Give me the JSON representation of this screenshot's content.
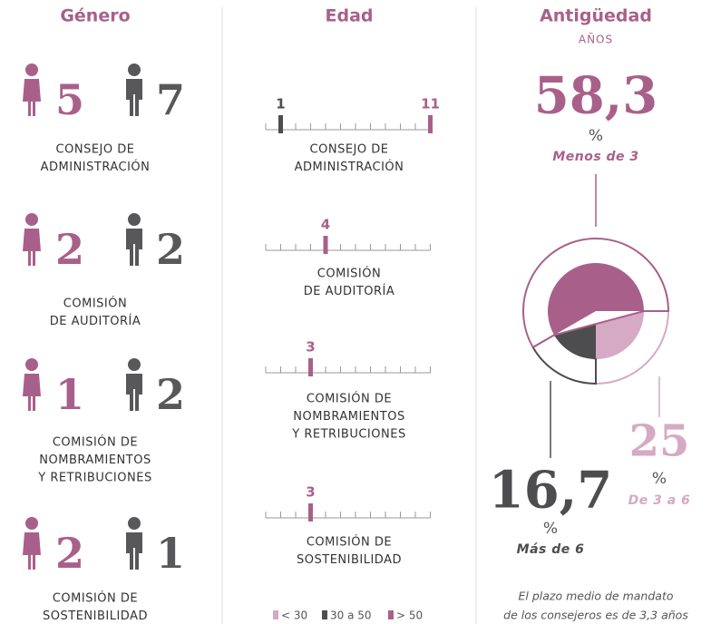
{
  "genero": {
    "title": "Género",
    "rows": [
      {
        "women": 5,
        "men": 7,
        "label": [
          "CONSEJO DE",
          "ADMINISTRACIÓN"
        ]
      },
      {
        "women": 2,
        "men": 2,
        "label": [
          "COMISIÓN",
          "DE AUDITORÍA"
        ]
      },
      {
        "women": 1,
        "men": 2,
        "label": [
          "COMISIÓN DE",
          "NOMBRAMIENTOS",
          "Y RETRIBUCIONES"
        ]
      },
      {
        "women": 2,
        "men": 1,
        "label": [
          "COMISIÓN DE",
          "SOSTENIBILIDAD"
        ]
      }
    ]
  },
  "edad": {
    "title": "Edad",
    "xlim": [
      0,
      11
    ],
    "ticks": [
      0,
      1,
      2,
      3,
      4,
      5,
      6,
      7,
      8,
      9,
      10,
      11
    ],
    "rows": [
      {
        "markers": [
          {
            "value": 1,
            "color": "#4d4d4f"
          },
          {
            "value": 11,
            "color": "#a8608a"
          }
        ],
        "label": [
          "CONSEJO DE",
          "ADMINISTRACIÓN"
        ]
      },
      {
        "markers": [
          {
            "value": 4,
            "color": "#a8608a"
          }
        ],
        "label": [
          "COMISIÓN",
          "DE AUDITORÍA"
        ]
      },
      {
        "markers": [
          {
            "value": 3,
            "color": "#a8608a"
          }
        ],
        "label": [
          "COMISIÓN DE",
          "NOMBRAMIENTOS",
          "Y RETRIBUCIONES"
        ]
      },
      {
        "markers": [
          {
            "value": 3,
            "color": "#a8608a"
          }
        ],
        "label": [
          "COMISIÓN DE",
          "SOSTENIBILIDAD"
        ]
      }
    ],
    "legend": [
      {
        "name": "< 30",
        "color": "#d6a9c4"
      },
      {
        "name": "30 a 50",
        "color": "#4d4d4f"
      },
      {
        "name": "> 50",
        "color": "#a8608a"
      }
    ]
  },
  "antiguedad": {
    "title": "Antigüedad",
    "subtitle": "AÑOS",
    "segments": [
      {
        "value": 25,
        "label": "25",
        "unit": "%",
        "name": "De 3 a 6",
        "color": "#d6a9c4"
      },
      {
        "value": 16.7,
        "label": "16,7",
        "unit": "%",
        "name": "Más de 6",
        "color": "#4d4d4f"
      },
      {
        "value": 58.3,
        "label": "58,3",
        "unit": "%",
        "name": "Menos de 3",
        "color": "#a8608a"
      }
    ],
    "note": [
      "El plazo medio de mandato",
      "de los consejeros es de 3,3 años"
    ]
  }
}
